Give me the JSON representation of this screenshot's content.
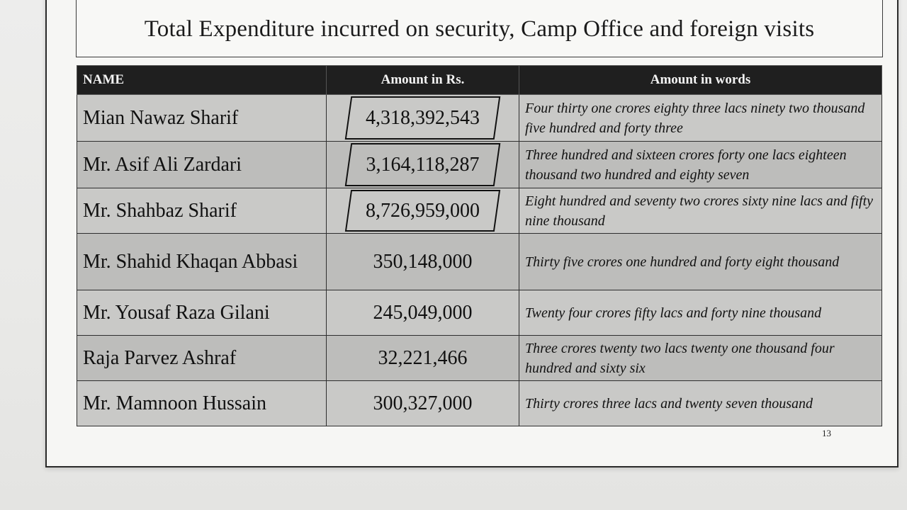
{
  "document": {
    "title": "Total Expenditure incurred on security, Camp Office and foreign visits",
    "page_number": "13"
  },
  "table": {
    "headers": {
      "name": "NAME",
      "amount": "Amount in Rs.",
      "words": "Amount in words"
    },
    "rows": [
      {
        "name": "Mian Nawaz Sharif",
        "amount": "4,318,392,543",
        "words": "Four thirty one crores eighty three lacs ninety two thousand five hundred and forty three",
        "marked": true
      },
      {
        "name": "Mr. Asif Ali Zardari",
        "amount": "3,164,118,287",
        "words": "Three hundred and sixteen crores forty one lacs eighteen thousand two hundred and eighty seven",
        "marked": true
      },
      {
        "name": "Mr. Shahbaz Sharif",
        "amount": "8,726,959,000",
        "words": "Eight hundred and seventy two crores sixty nine lacs and fifty nine thousand",
        "marked": true
      },
      {
        "name": "Mr. Shahid Khaqan Abbasi",
        "amount": "350,148,000",
        "words": "Thirty five crores one hundred and forty eight thousand",
        "marked": false
      },
      {
        "name": "Mr. Yousaf Raza Gilani",
        "amount": "245,049,000",
        "words": "Twenty four crores fifty lacs and forty nine thousand",
        "marked": false
      },
      {
        "name": "Raja Parvez Ashraf",
        "amount": "32,221,466",
        "words": "Three crores twenty two lacs twenty one thousand four hundred and sixty six",
        "marked": false
      },
      {
        "name": "Mr. Mamnoon Hussain",
        "amount": "300,327,000",
        "words": "Thirty crores three lacs and twenty seven thousand",
        "marked": false
      }
    ]
  }
}
